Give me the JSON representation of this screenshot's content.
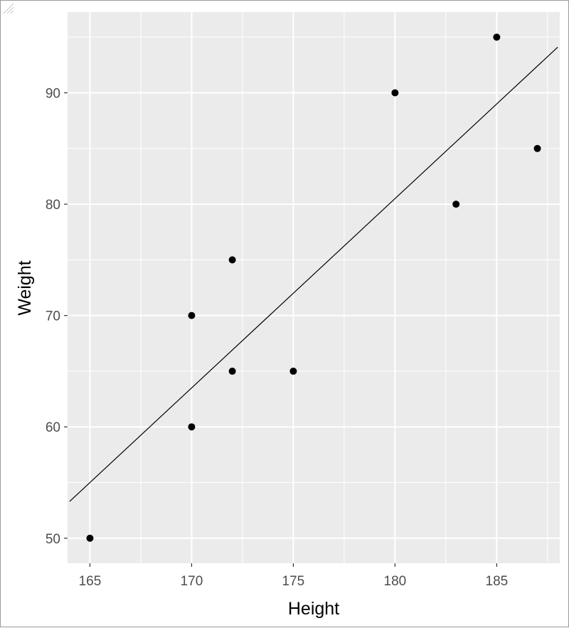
{
  "chart_data": {
    "type": "scatter",
    "title": "",
    "xlabel": "Height",
    "ylabel": "Weight",
    "xlim": [
      163.9,
      188.1
    ],
    "ylim": [
      47.75,
      97.25
    ],
    "x_ticks": [
      165,
      170,
      175,
      180,
      185
    ],
    "y_ticks": [
      50,
      60,
      70,
      80,
      90
    ],
    "points": [
      {
        "x": 165,
        "y": 50
      },
      {
        "x": 170,
        "y": 60
      },
      {
        "x": 170,
        "y": 70
      },
      {
        "x": 172,
        "y": 65
      },
      {
        "x": 172,
        "y": 75
      },
      {
        "x": 175,
        "y": 65
      },
      {
        "x": 180,
        "y": 90
      },
      {
        "x": 183,
        "y": 80
      },
      {
        "x": 185,
        "y": 95
      },
      {
        "x": 187,
        "y": 85
      }
    ],
    "trend_line": {
      "x": [
        164,
        188
      ],
      "y": [
        53.3,
        94.1
      ]
    },
    "grid": true,
    "legend": "none",
    "colors": {
      "panel": "#ebebeb",
      "grid": "#ffffff",
      "point": "#000000",
      "line": "#000000"
    }
  }
}
